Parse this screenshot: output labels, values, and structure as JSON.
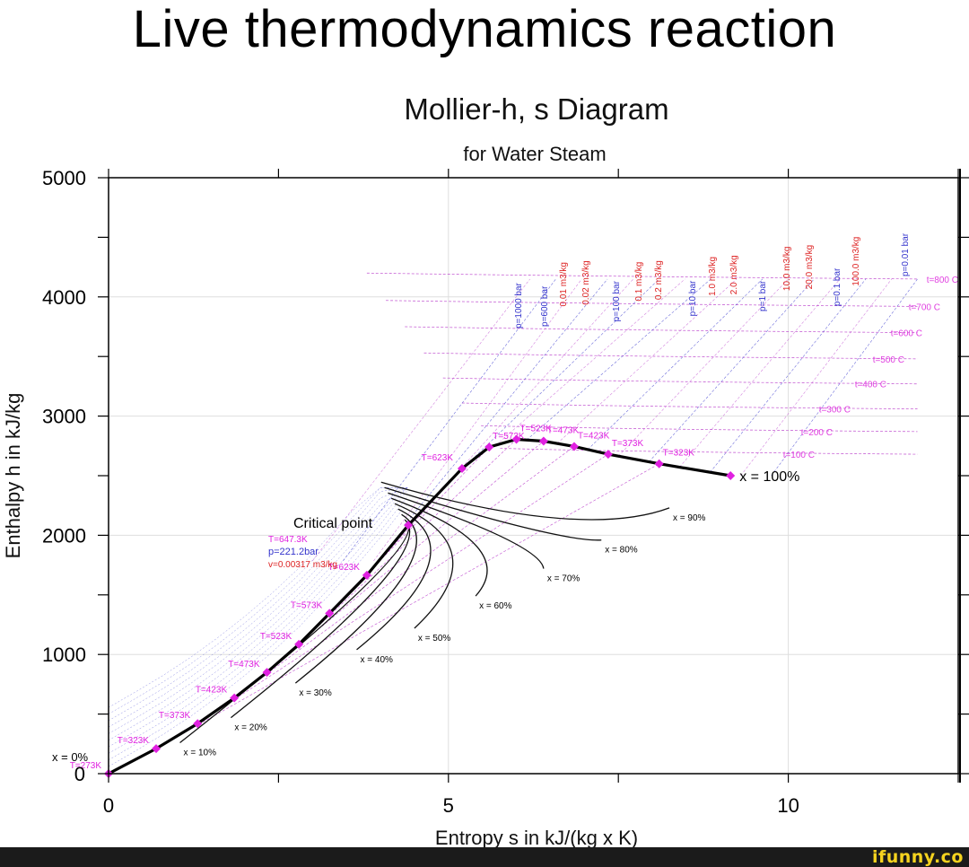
{
  "meme_title": "Live thermodynamics reaction",
  "watermark": "ifunny.co",
  "colors": {
    "marker": "#e020e0",
    "isobar": "#3333cc",
    "isochore": "#dd2222",
    "isotherm_label": "#e040e0",
    "saturation": "#000000",
    "mesh": "#c050d0",
    "footer": "#1b1b1b",
    "watermark": "#f5d31f"
  },
  "chart_data": {
    "type": "line",
    "title": "Mollier-h, s Diagram",
    "subtitle": "for Water Steam",
    "xlabel": "Entropy s in kJ/(kg x K)",
    "ylabel": "Enthalpy h in kJ/kg",
    "xlim": [
      0,
      12.5
    ],
    "ylim": [
      0,
      5000
    ],
    "x_ticks": [
      "0",
      "5",
      "10"
    ],
    "y_ticks": [
      "0",
      "1000",
      "2000",
      "3000",
      "4000",
      "5000"
    ],
    "grid": true,
    "saturated_liquid": [
      {
        "s": 0.0,
        "h": 0
      },
      {
        "s": 0.7,
        "h": 210
      },
      {
        "s": 1.31,
        "h": 420
      },
      {
        "s": 1.85,
        "h": 635
      },
      {
        "s": 2.33,
        "h": 850
      },
      {
        "s": 2.8,
        "h": 1085
      },
      {
        "s": 3.25,
        "h": 1345
      },
      {
        "s": 3.8,
        "h": 1665
      },
      {
        "s": 4.41,
        "h": 2085
      }
    ],
    "saturated_vapor": [
      {
        "s": 4.41,
        "h": 2085
      },
      {
        "s": 4.9,
        "h": 2380
      },
      {
        "s": 5.2,
        "h": 2560
      },
      {
        "s": 5.6,
        "h": 2740
      },
      {
        "s": 6.0,
        "h": 2805
      },
      {
        "s": 6.4,
        "h": 2790
      },
      {
        "s": 6.85,
        "h": 2745
      },
      {
        "s": 7.35,
        "h": 2680
      },
      {
        "s": 8.1,
        "h": 2600
      },
      {
        "s": 9.15,
        "h": 2500
      }
    ],
    "liquid_markers": [
      {
        "s": 0.0,
        "h": 0,
        "label": "T=273K"
      },
      {
        "s": 0.7,
        "h": 210,
        "label": "T=323K"
      },
      {
        "s": 1.31,
        "h": 420,
        "label": "T=373K"
      },
      {
        "s": 1.85,
        "h": 635,
        "label": "T=423K"
      },
      {
        "s": 2.33,
        "h": 850,
        "label": "T=473K"
      },
      {
        "s": 2.8,
        "h": 1085,
        "label": "T=523K"
      },
      {
        "s": 3.25,
        "h": 1345,
        "label": "T=573K"
      },
      {
        "s": 3.8,
        "h": 1665,
        "label": "T=623K"
      }
    ],
    "vapor_markers": [
      {
        "s": 5.2,
        "h": 2560,
        "label": "T=623K"
      },
      {
        "s": 5.6,
        "h": 2740,
        "label": "T=573K"
      },
      {
        "s": 6.0,
        "h": 2805,
        "label": "T=523K"
      },
      {
        "s": 6.4,
        "h": 2790,
        "label": "T=473K"
      },
      {
        "s": 6.85,
        "h": 2745,
        "label": "T=423K"
      },
      {
        "s": 7.35,
        "h": 2680,
        "label": "T=373K"
      },
      {
        "s": 8.1,
        "h": 2600,
        "label": "T=323K"
      }
    ],
    "critical_point": {
      "s": 4.41,
      "h": 2085,
      "label": "Critical point",
      "T": "T=647.3K",
      "p": "p=221.2bar",
      "v": "v=0.00317 m3/kg"
    },
    "quality_lines": [
      {
        "label": "x = 10%",
        "s_end": 1.05,
        "h_end": 260
      },
      {
        "label": "x = 20%",
        "s_end": 1.8,
        "h_end": 470
      },
      {
        "label": "x = 30%",
        "s_end": 2.75,
        "h_end": 760
      },
      {
        "label": "x = 40%",
        "s_end": 3.65,
        "h_end": 1040
      },
      {
        "label": "x = 50%",
        "s_end": 4.5,
        "h_end": 1220
      },
      {
        "label": "x = 60%",
        "s_end": 5.4,
        "h_end": 1490
      },
      {
        "label": "x = 70%",
        "s_end": 6.4,
        "h_end": 1720
      },
      {
        "label": "x = 80%",
        "s_end": 7.25,
        "h_end": 1960
      },
      {
        "label": "x = 90%",
        "s_end": 8.25,
        "h_end": 2230
      }
    ],
    "quality_endpoints": {
      "x0": "x = 0%",
      "x100": "x = 100%"
    },
    "isobars": [
      "p=1000 bar",
      "p=600 bar",
      "p=100 bar",
      "p=10 bar",
      "p=1 bar",
      "p=0.1 bar",
      "p=0.01 bar"
    ],
    "isochores": [
      "0.01 m3/kg",
      "0.02 m3/kg",
      "0.1 m3/kg",
      "0.2 m3/kg",
      "1.0 m3/kg",
      "2.0 m3/kg",
      "10.0 m3/kg",
      "20.0 m3/kg",
      "100.0 m3/kg"
    ],
    "isotherms": [
      {
        "label": "t=800 C",
        "h": 4150
      },
      {
        "label": "t=700 C",
        "h": 3920
      },
      {
        "label": "t=600 C",
        "h": 3700
      },
      {
        "label": "t=500 C",
        "h": 3480
      },
      {
        "label": "t=400 C",
        "h": 3270
      },
      {
        "label": "t=300 C",
        "h": 3060
      },
      {
        "label": "t=200 C",
        "h": 2870
      },
      {
        "label": "t=100 C",
        "h": 2680
      }
    ]
  }
}
